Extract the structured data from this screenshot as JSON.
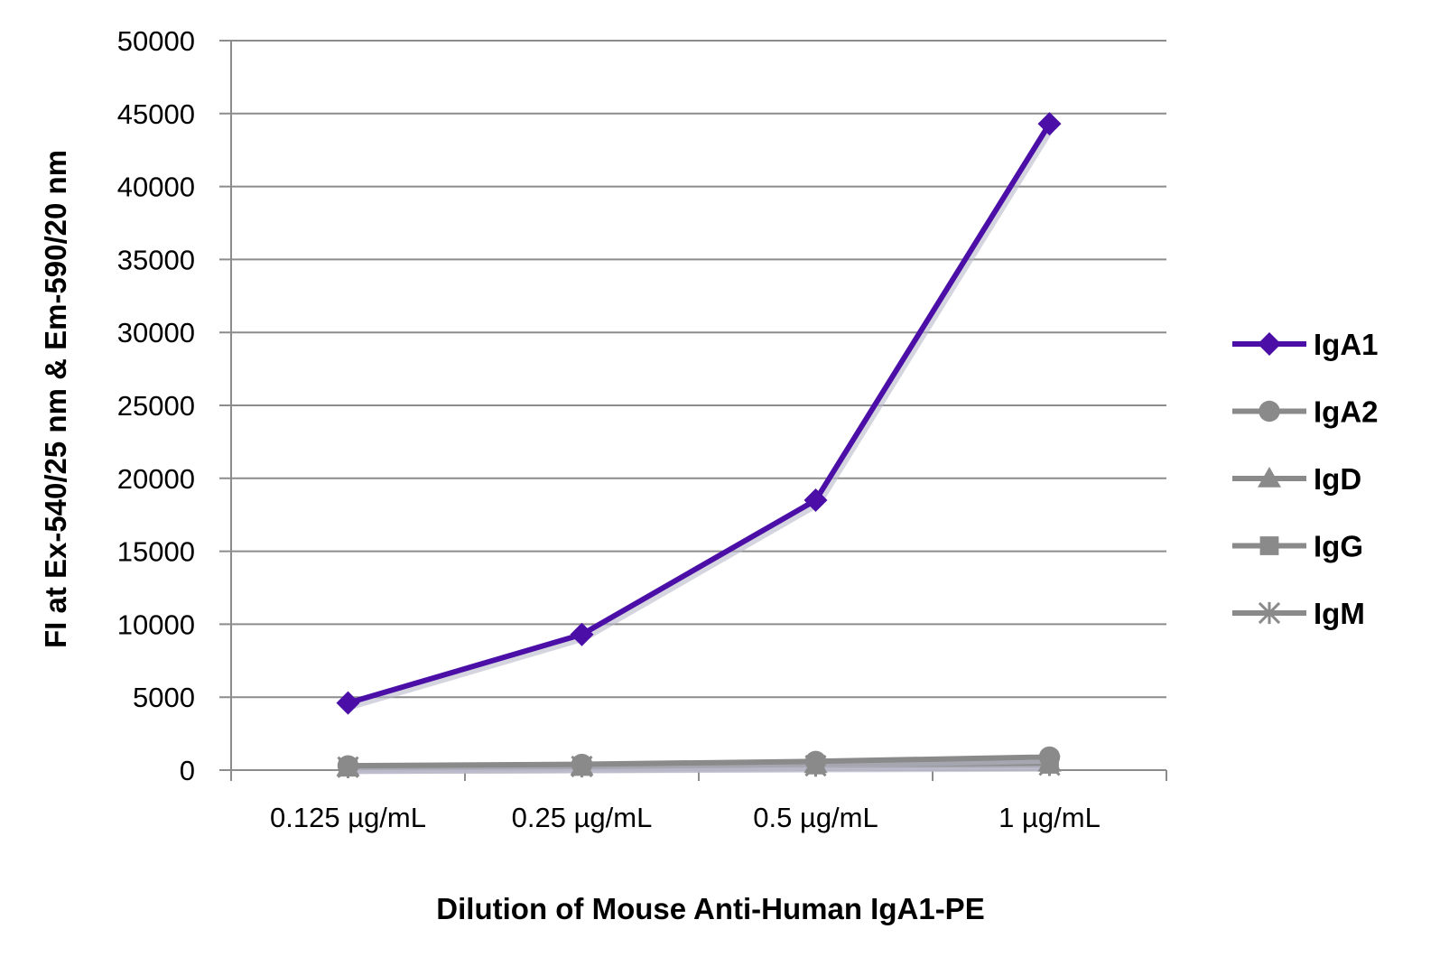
{
  "chart_data": {
    "type": "line",
    "title": "",
    "xlabel": "Dilution of Mouse Anti-Human IgA1-PE",
    "ylabel": "FI at Ex-540/25 nm & Em-590/20 nm",
    "categories": [
      "0.125 µg/mL",
      "0.25 µg/mL",
      "0.5 µg/mL",
      "1 µg/mL"
    ],
    "ylim": [
      0,
      50000
    ],
    "yticks": [
      0,
      5000,
      10000,
      15000,
      20000,
      25000,
      30000,
      35000,
      40000,
      45000,
      50000
    ],
    "grid": true,
    "legend_position": "right",
    "series": [
      {
        "name": "IgA1",
        "marker": "diamond",
        "color": "#4b0fa8",
        "values": [
          4600,
          9300,
          18500,
          44300
        ]
      },
      {
        "name": "IgA2",
        "marker": "circle",
        "color": "#8a8a8a",
        "values": [
          300,
          400,
          600,
          900
        ]
      },
      {
        "name": "IgD",
        "marker": "triangle",
        "color": "#8a8a8a",
        "values": [
          200,
          250,
          400,
          500
        ]
      },
      {
        "name": "IgG",
        "marker": "square",
        "color": "#8a8a8a",
        "values": [
          200,
          250,
          350,
          400
        ]
      },
      {
        "name": "IgM",
        "marker": "star",
        "color": "#8a8a8a",
        "values": [
          200,
          250,
          300,
          350
        ]
      }
    ]
  }
}
